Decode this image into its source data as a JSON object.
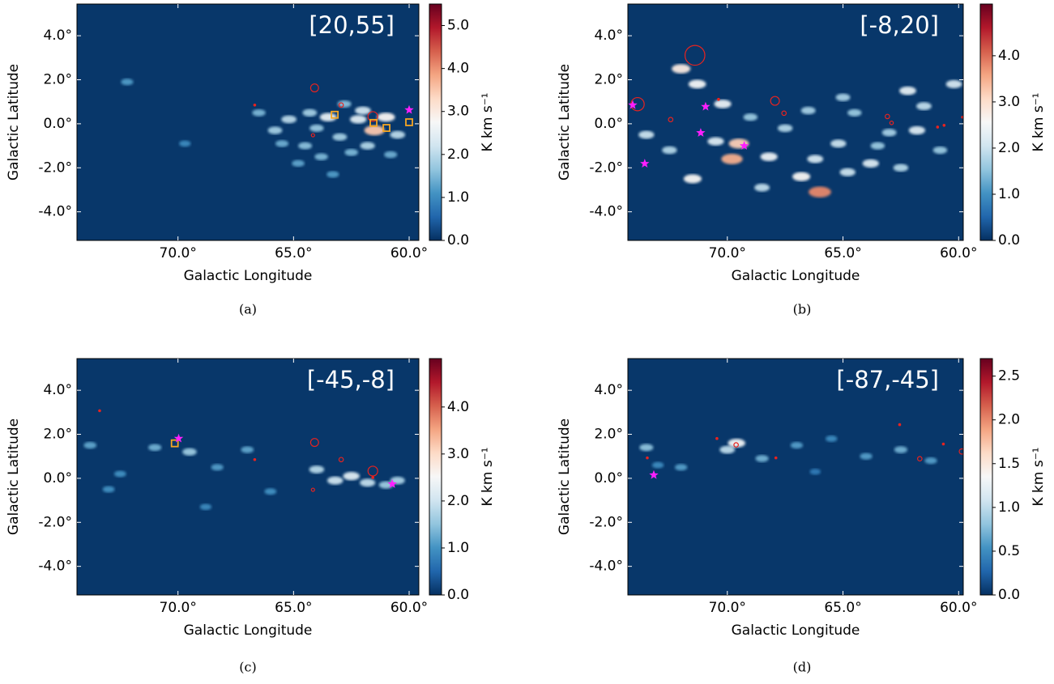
{
  "chart_data": [
    {
      "type": "heatmap",
      "title": "[20,55]",
      "xlabel": "Galactic Longitude",
      "ylabel": "Galactic Latitude",
      "caption": "(a)",
      "xlim": [
        74.37,
        59.58
      ],
      "ylim": [
        -5.3,
        5.44
      ],
      "xticks": [
        {
          "value": 70,
          "label": "70.0°"
        },
        {
          "value": 65,
          "label": "65.0°"
        },
        {
          "value": 60,
          "label": "60.0°"
        }
      ],
      "yticks": [
        {
          "value": -4,
          "label": "-4.0°"
        },
        {
          "value": -2,
          "label": "-2.0°"
        },
        {
          "value": 0,
          "label": "0.0°"
        },
        {
          "value": 2,
          "label": "2.0°"
        },
        {
          "value": 4,
          "label": "4.0°"
        }
      ],
      "colorbar": {
        "label": "K km s⁻¹",
        "lim": [
          0,
          5.5
        ],
        "ticks": [
          {
            "value": 0,
            "label": "0.0"
          },
          {
            "value": 1,
            "label": "1.0"
          },
          {
            "value": 2,
            "label": "2.0"
          },
          {
            "value": 3,
            "label": "3.0"
          },
          {
            "value": 4,
            "label": "4.0"
          },
          {
            "value": 5,
            "label": "5.0"
          }
        ]
      },
      "emission": {
        "x": [
          72.2,
          69.7,
          66.5,
          65.8,
          65.2,
          64.5,
          64.0,
          63.5,
          63.0,
          62.5,
          62.0,
          61.5,
          61.0,
          60.5,
          64.8,
          63.8,
          62.8,
          61.8,
          60.8,
          63.3,
          62.2,
          65.5,
          64.3
        ],
        "y": [
          1.9,
          -0.9,
          0.5,
          -0.3,
          0.2,
          -1.0,
          -0.2,
          0.3,
          -0.6,
          -1.3,
          0.6,
          -0.3,
          0.3,
          -0.5,
          -1.8,
          -1.5,
          0.9,
          -1.0,
          -1.4,
          -2.3,
          0.2,
          -0.9,
          0.5
        ],
        "values": [
          1.2,
          1.0,
          1.5,
          1.8,
          2.0,
          1.6,
          1.7,
          2.5,
          1.8,
          1.5,
          2.2,
          3.5,
          2.8,
          2.0,
          1.3,
          1.5,
          1.6,
          1.9,
          1.4,
          1.2,
          2.4,
          1.4,
          1.8
        ]
      },
      "markers": [
        {
          "shape": "circle",
          "color": "#e8231f",
          "x": [
            64.09,
            61.57,
            62.94,
            64.16
          ],
          "y": [
            1.63,
            0.33,
            0.85,
            -0.52
          ],
          "radii": [
            0.18,
            0.22,
            0.1,
            0.07
          ]
        },
        {
          "shape": "dot",
          "color": "#e8231f",
          "x": [
            66.68
          ],
          "y": [
            0.85
          ]
        },
        {
          "shape": "square",
          "color": "#f5a623",
          "x": [
            63.22,
            61.54,
            60.98,
            60.0
          ],
          "y": [
            0.41,
            0.04,
            -0.19,
            0.07
          ]
        },
        {
          "shape": "star",
          "color": "#ff1fff",
          "x": [
            60.0
          ],
          "y": [
            0.63
          ]
        }
      ]
    },
    {
      "type": "heatmap",
      "title": "[-8,20]",
      "xlabel": "Galactic Longitude",
      "ylabel": "Galactic Latitude",
      "caption": "(b)",
      "xlim": [
        74.3,
        59.8
      ],
      "ylim": [
        -5.3,
        5.44
      ],
      "xticks": [
        {
          "value": 70,
          "label": "70.0°"
        },
        {
          "value": 65,
          "label": "65.0°"
        },
        {
          "value": 60,
          "label": "60.0°"
        }
      ],
      "yticks": [
        {
          "value": -4,
          "label": "-4.0°"
        },
        {
          "value": -2,
          "label": "-2.0°"
        },
        {
          "value": 0,
          "label": "0.0°"
        },
        {
          "value": 2,
          "label": "2.0°"
        },
        {
          "value": 4,
          "label": "4.0°"
        }
      ],
      "colorbar": {
        "label": "K km s⁻¹",
        "lim": [
          0,
          5.12
        ],
        "ticks": [
          {
            "value": 0,
            "label": "0.0"
          },
          {
            "value": 1,
            "label": "1.0"
          },
          {
            "value": 2,
            "label": "2.0"
          },
          {
            "value": 3,
            "label": "3.0"
          },
          {
            "value": 4,
            "label": "4.0"
          }
        ]
      },
      "emission": {
        "x": [
          73.5,
          72.5,
          71.3,
          70.5,
          69.8,
          69.0,
          68.2,
          67.5,
          66.8,
          66.0,
          65.2,
          64.5,
          63.8,
          63.0,
          62.2,
          61.5,
          60.8,
          60.2,
          72.0,
          70.2,
          68.5,
          66.5,
          64.8,
          63.5,
          61.8,
          71.5,
          69.5,
          66.2,
          65.0,
          62.5
        ],
        "y": [
          -0.5,
          -1.2,
          1.8,
          -0.8,
          -1.6,
          0.3,
          -1.5,
          -0.2,
          -2.4,
          -3.1,
          -0.9,
          0.5,
          -1.8,
          -0.4,
          1.5,
          0.8,
          -1.2,
          1.8,
          2.5,
          0.9,
          -2.9,
          0.6,
          -2.2,
          -1.0,
          -0.3,
          -2.5,
          -0.9,
          -1.6,
          1.2,
          -2.0
        ],
        "values": [
          2.0,
          1.8,
          2.5,
          2.2,
          3.5,
          1.6,
          2.4,
          1.8,
          2.6,
          3.8,
          2.0,
          1.6,
          2.2,
          1.7,
          2.3,
          1.9,
          1.6,
          2.1,
          2.8,
          2.4,
          1.9,
          1.7,
          2.0,
          1.6,
          2.2,
          2.6,
          3.2,
          2.1,
          1.7,
          1.8
        ]
      },
      "markers": [
        {
          "shape": "circle",
          "color": "#e8231f",
          "x": [
            71.4,
            73.88,
            67.94,
            72.45,
            67.55,
            63.08,
            62.9
          ],
          "y": [
            3.11,
            0.89,
            1.04,
            0.19,
            0.48,
            0.33,
            0.04
          ],
          "radii": [
            0.45,
            0.3,
            0.2,
            0.1,
            0.1,
            0.1,
            0.08
          ]
        },
        {
          "shape": "dot",
          "color": "#e8231f",
          "x": [
            70.38,
            60.91,
            60.63,
            59.83
          ],
          "y": [
            1.11,
            -0.15,
            -0.07,
            0.3
          ]
        },
        {
          "shape": "star",
          "color": "#ff1fff",
          "x": [
            74.09,
            70.94,
            71.15,
            73.57,
            69.27
          ],
          "y": [
            0.85,
            0.78,
            -0.41,
            -1.81,
            -1.0
          ]
        }
      ]
    },
    {
      "type": "heatmap",
      "title": "[-45,-8]",
      "xlabel": "Galactic Longitude",
      "ylabel": "Galactic Latitude",
      "caption": "(c)",
      "xlim": [
        74.37,
        59.58
      ],
      "ylim": [
        -5.3,
        5.44
      ],
      "xticks": [
        {
          "value": 70,
          "label": "70.0°"
        },
        {
          "value": 65,
          "label": "65.0°"
        },
        {
          "value": 60,
          "label": "60.0°"
        }
      ],
      "yticks": [
        {
          "value": -4,
          "label": "-4.0°"
        },
        {
          "value": -2,
          "label": "-2.0°"
        },
        {
          "value": 0,
          "label": "0.0°"
        },
        {
          "value": 2,
          "label": "2.0°"
        },
        {
          "value": 4,
          "label": "4.0°"
        }
      ],
      "colorbar": {
        "label": "K km s⁻¹",
        "lim": [
          0,
          5.03
        ],
        "ticks": [
          {
            "value": 0,
            "label": "0.0"
          },
          {
            "value": 1,
            "label": "1.0"
          },
          {
            "value": 2,
            "label": "2.0"
          },
          {
            "value": 3,
            "label": "3.0"
          },
          {
            "value": 4,
            "label": "4.0"
          }
        ]
      },
      "emission": {
        "x": [
          73.8,
          72.5,
          71.0,
          69.5,
          68.3,
          67.0,
          64.0,
          63.2,
          62.5,
          61.8,
          61.0,
          60.5,
          73.0,
          68.8,
          66.0
        ],
        "y": [
          1.5,
          0.2,
          1.4,
          1.2,
          0.5,
          1.3,
          0.4,
          -0.1,
          0.1,
          -0.2,
          -0.3,
          -0.1,
          -0.5,
          -1.3,
          -0.6
        ],
        "values": [
          1.2,
          1.0,
          1.3,
          1.6,
          1.1,
          1.2,
          1.8,
          2.0,
          2.2,
          1.9,
          1.6,
          1.7,
          1.0,
          0.9,
          1.0
        ]
      },
      "markers": [
        {
          "shape": "circle",
          "color": "#e8231f",
          "x": [
            64.09,
            61.57,
            62.94,
            64.16
          ],
          "y": [
            1.63,
            0.33,
            0.85,
            -0.52
          ],
          "radii": [
            0.18,
            0.22,
            0.1,
            0.07
          ]
        },
        {
          "shape": "dot",
          "color": "#e8231f",
          "x": [
            66.68,
            73.39,
            61.57
          ],
          "y": [
            0.85,
            3.07,
            0.04
          ]
        },
        {
          "shape": "square",
          "color": "#f5a623",
          "x": [
            70.14
          ],
          "y": [
            1.59
          ]
        },
        {
          "shape": "star",
          "color": "#ff1fff",
          "x": [
            69.97,
            60.73
          ],
          "y": [
            1.81,
            -0.26
          ]
        }
      ]
    },
    {
      "type": "heatmap",
      "title": "[-87,-45]",
      "xlabel": "Galactic Longitude",
      "ylabel": "Galactic Latitude",
      "caption": "(d)",
      "xlim": [
        74.3,
        59.8
      ],
      "ylim": [
        -5.3,
        5.44
      ],
      "xticks": [
        {
          "value": 70,
          "label": "70.0°"
        },
        {
          "value": 65,
          "label": "65.0°"
        },
        {
          "value": 60,
          "label": "60.0°"
        }
      ],
      "yticks": [
        {
          "value": -4,
          "label": "-4.0°"
        },
        {
          "value": -2,
          "label": "-2.0°"
        },
        {
          "value": 0,
          "label": "0.0°"
        },
        {
          "value": 2,
          "label": "2.0°"
        },
        {
          "value": 4,
          "label": "4.0°"
        }
      ],
      "colorbar": {
        "label": "K km s⁻¹",
        "lim": [
          0,
          2.7
        ],
        "ticks": [
          {
            "value": 0,
            "label": "0.0"
          },
          {
            "value": 0.5,
            "label": "0.5"
          },
          {
            "value": 1,
            "label": "1.0"
          },
          {
            "value": 1.5,
            "label": "1.5"
          },
          {
            "value": 2,
            "label": "2.0"
          },
          {
            "value": 2.5,
            "label": "2.5"
          }
        ]
      },
      "emission": {
        "x": [
          73.5,
          72.0,
          70.0,
          69.6,
          68.5,
          67.0,
          65.5,
          64.0,
          62.5,
          61.2,
          73.0,
          66.2
        ],
        "y": [
          1.4,
          0.5,
          1.3,
          1.6,
          0.9,
          1.5,
          1.8,
          1.0,
          1.3,
          0.8,
          0.6,
          0.3
        ],
        "values": [
          0.8,
          0.6,
          1.0,
          1.3,
          0.7,
          0.6,
          0.5,
          0.6,
          0.7,
          0.6,
          0.5,
          0.4
        ]
      },
      "markers": [
        {
          "shape": "circle",
          "color": "#e8231f",
          "x": [
            69.62,
            61.68,
            59.86
          ],
          "y": [
            1.52,
            0.89,
            1.22
          ],
          "radii": [
            0.1,
            0.1,
            0.12
          ]
        },
        {
          "shape": "dot",
          "color": "#e8231f",
          "x": [
            70.45,
            67.9,
            62.55,
            60.66,
            73.46
          ],
          "y": [
            1.81,
            0.93,
            2.44,
            1.56,
            0.93
          ]
        },
        {
          "shape": "star",
          "color": "#ff1fff",
          "x": [
            73.18
          ],
          "y": [
            0.15
          ]
        }
      ]
    }
  ]
}
